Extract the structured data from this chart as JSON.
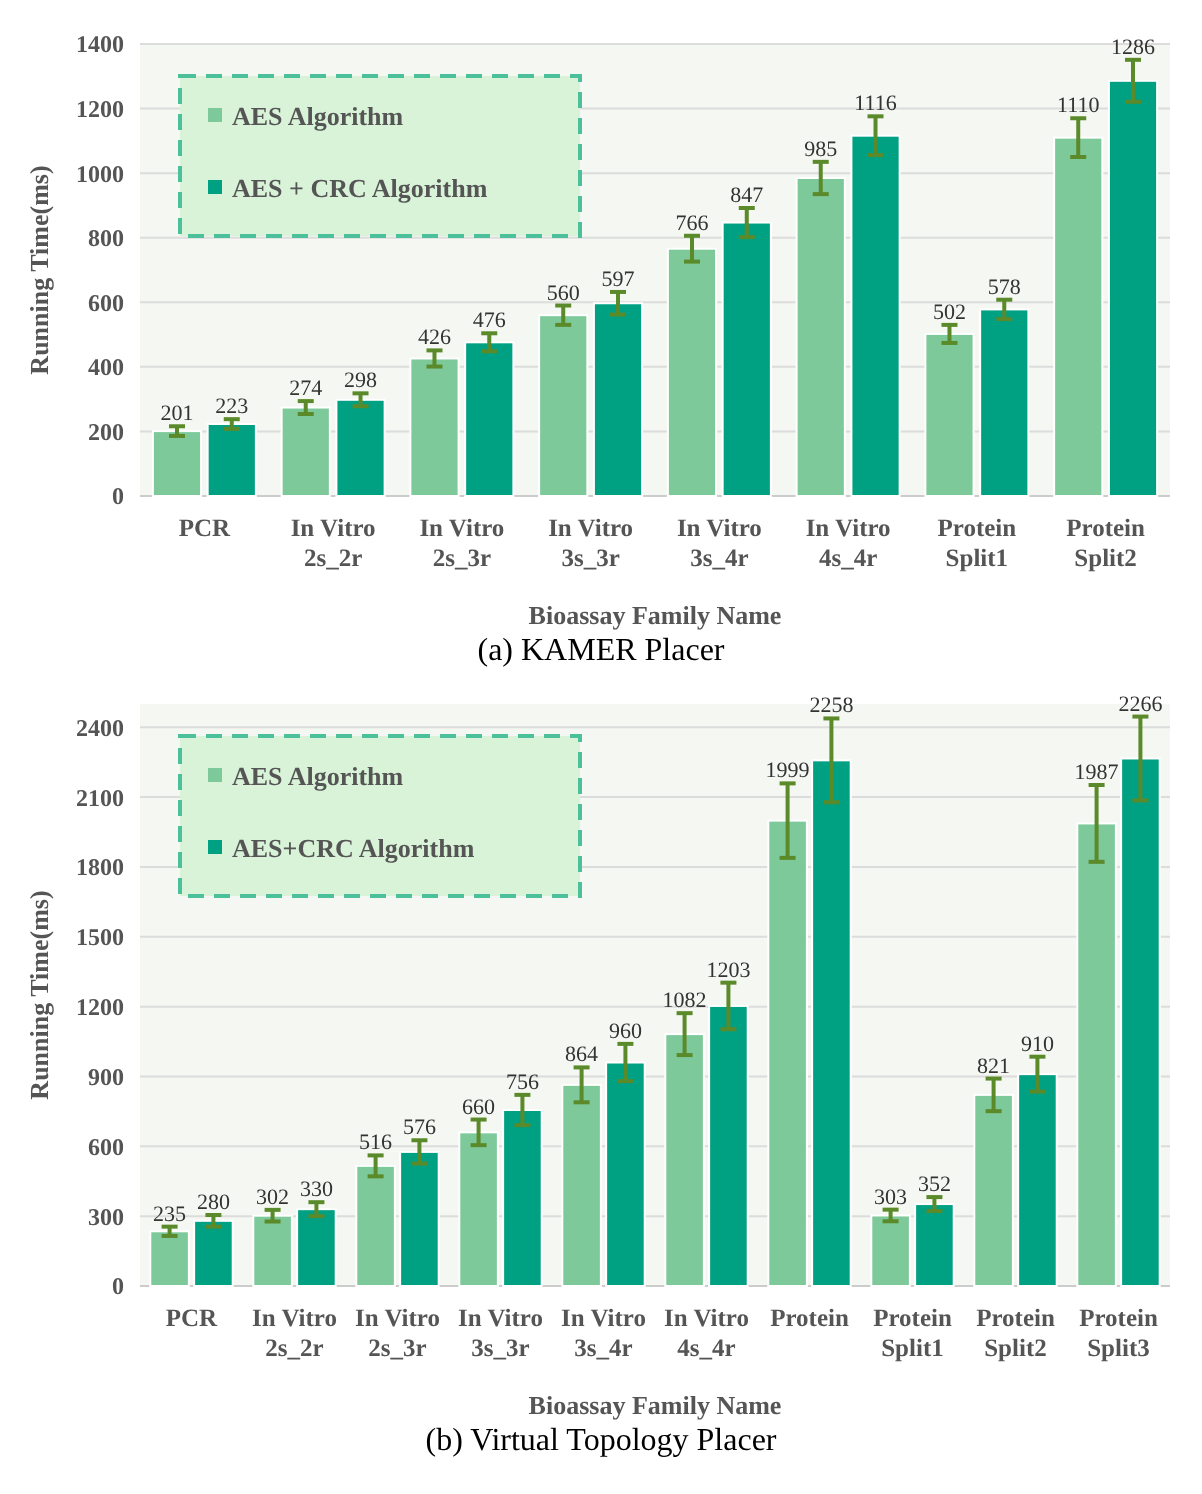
{
  "chart_data": [
    {
      "type": "bar",
      "xlabel": "Bioassay Family Name",
      "ylabel": "Running Time(ms)",
      "annotations": [
        "(a)  KAMER Placer"
      ],
      "categories": [
        "PCR",
        "In Vitro\n2s_2r",
        "In Vitro\n2s_3r",
        "In Vitro\n3s_3r",
        "In Vitro\n3s_4r",
        "In Vitro\n4s_4r",
        "Protein\nSplit1",
        "Protein\nSplit2"
      ],
      "series": [
        {
          "name": "AES Algorithm",
          "color": "#7dc99a",
          "values": [
            201,
            274,
            426,
            560,
            766,
            985,
            502,
            1110
          ],
          "errors": [
            15,
            20,
            25,
            30,
            40,
            50,
            28,
            60
          ]
        },
        {
          "name": "AES + CRC Algorithm",
          "color": "#00a082",
          "values": [
            223,
            298,
            476,
            597,
            847,
            1116,
            578,
            1286
          ],
          "errors": [
            15,
            20,
            28,
            35,
            45,
            60,
            30,
            65
          ]
        }
      ],
      "ylim": [
        0,
        1400
      ],
      "yticks": [
        0,
        200,
        400,
        600,
        800,
        1000,
        1200,
        1400
      ],
      "grid": "y",
      "legend": "top left",
      "data_labels": true
    },
    {
      "type": "bar",
      "xlabel": "Bioassay Family Name",
      "ylabel": "Running Time(ms)",
      "annotations": [
        "(b)  Virtual Topology Placer"
      ],
      "categories": [
        "PCR",
        "In Vitro\n2s_2r",
        "In Vitro\n2s_3r",
        "In Vitro\n3s_3r",
        "In Vitro\n3s_4r",
        "In Vitro\n4s_4r",
        "Protein",
        "Protein\nSplit1",
        "Protein\nSplit2",
        "Protein\nSplit3"
      ],
      "series": [
        {
          "name": "AES Algorithm",
          "color": "#7dc99a",
          "values": [
            235,
            302,
            516,
            660,
            864,
            1082,
            1999,
            303,
            821,
            1987
          ],
          "errors": [
            20,
            25,
            45,
            55,
            75,
            90,
            160,
            25,
            70,
            165
          ]
        },
        {
          "name": "AES+CRC Algorithm",
          "color": "#00a082",
          "values": [
            280,
            330,
            576,
            756,
            960,
            1203,
            2258,
            352,
            910,
            2266
          ],
          "errors": [
            25,
            30,
            50,
            65,
            80,
            100,
            180,
            30,
            75,
            180
          ]
        }
      ],
      "ylim": [
        0,
        2500
      ],
      "yticks": [
        0,
        300,
        600,
        900,
        1200,
        1500,
        1800,
        2100,
        2400
      ],
      "grid": "y",
      "legend": "top left",
      "data_labels": true
    }
  ]
}
